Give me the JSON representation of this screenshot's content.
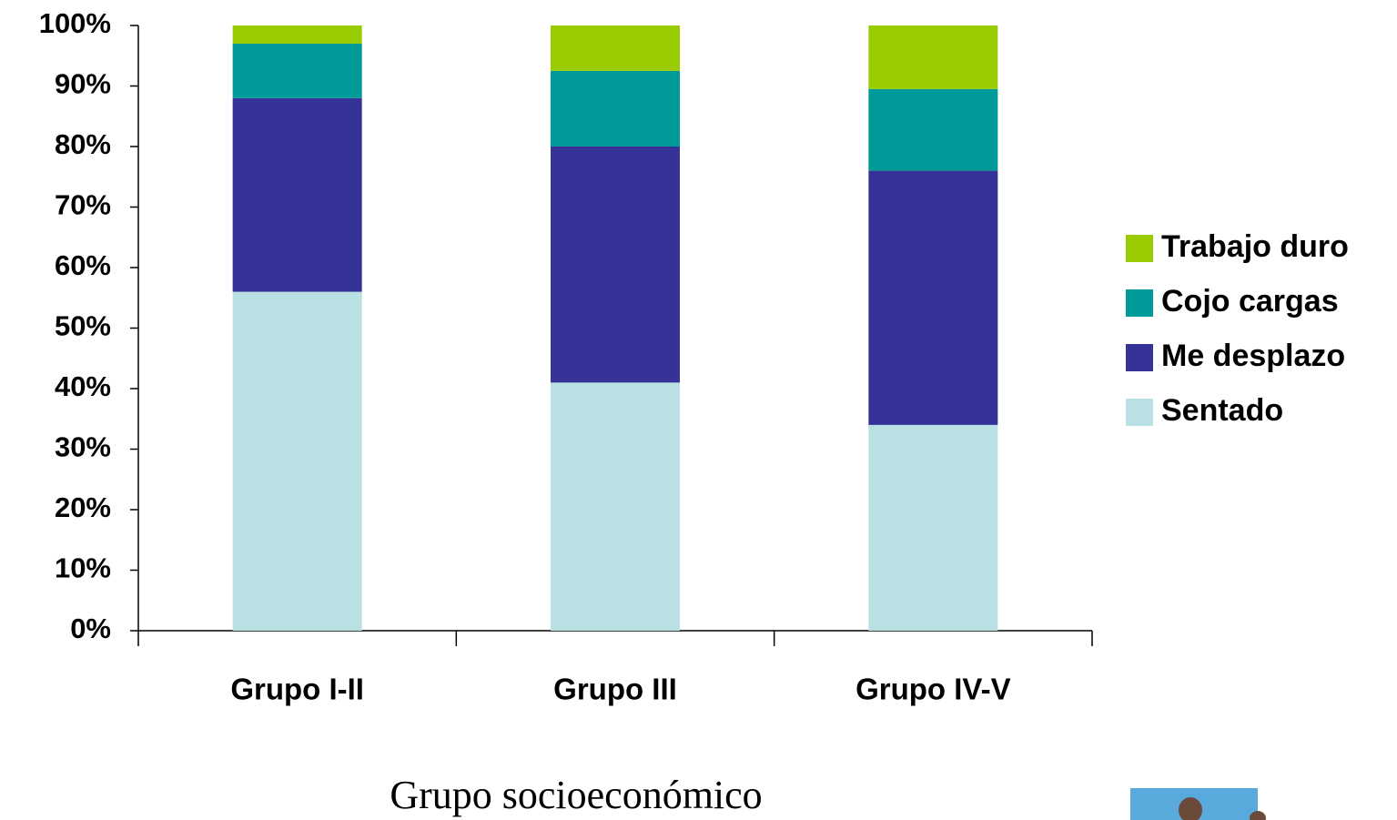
{
  "chart_data": {
    "type": "stacked-bar",
    "x_label": "Grupo socioeconómico",
    "categories": [
      "Grupo I-II",
      "Grupo III",
      "Grupo IV-V"
    ],
    "series": [
      {
        "name": "Sentado",
        "color": "#b9e0e3",
        "values": [
          56,
          41,
          34
        ]
      },
      {
        "name": "Me desplazo",
        "color": "#363398",
        "values": [
          32,
          39,
          42
        ]
      },
      {
        "name": "Cojo cargas",
        "color": "#009a99",
        "values": [
          9,
          12.5,
          13.5
        ]
      },
      {
        "name": "Trabajo duro",
        "color": "#99cc00",
        "values": [
          3,
          7.5,
          10.5
        ]
      }
    ],
    "ylim": [
      0,
      100
    ],
    "yticks": [
      {
        "value": 0,
        "label": "0%"
      },
      {
        "value": 10,
        "label": "10%"
      },
      {
        "value": 20,
        "label": "20%"
      },
      {
        "value": 30,
        "label": "30%"
      },
      {
        "value": 40,
        "label": "40%"
      },
      {
        "value": 50,
        "label": "50%"
      },
      {
        "value": 60,
        "label": "60%"
      },
      {
        "value": 70,
        "label": "70%"
      },
      {
        "value": 80,
        "label": "80%"
      },
      {
        "value": 90,
        "label": "90%"
      },
      {
        "value": 100,
        "label": "100%"
      }
    ],
    "legend": "right"
  }
}
